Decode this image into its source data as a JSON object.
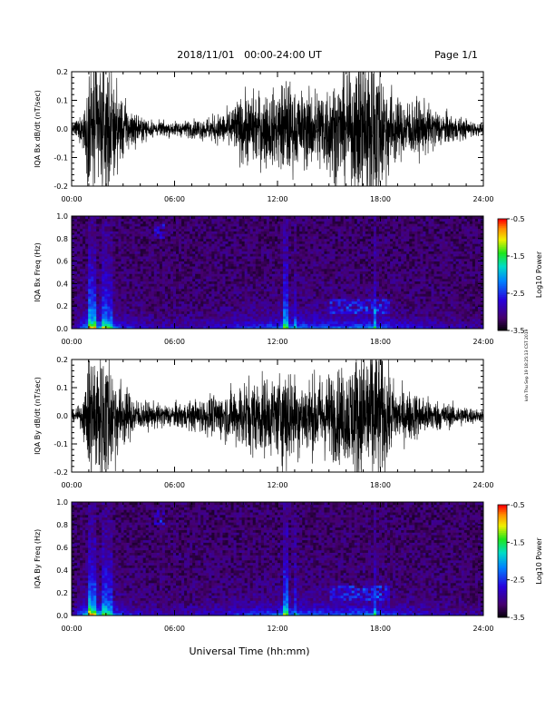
{
  "header": {
    "title": "2018/11/01   00:00-24:00 UT",
    "page": "Page 1/1"
  },
  "side_note": "ksh Thu Sep 19 18:25:13 CST 2019",
  "xlabel": "Universal Time (hh:mm)",
  "chart_data": [
    {
      "type": "line",
      "ylabel": "IQA Bx dB/dt (nT/sec)",
      "xlim": [
        0,
        24
      ],
      "ylim": [
        -0.2,
        0.2
      ],
      "x_ticks": [
        "00:00",
        "06:00",
        "12:00",
        "18:00",
        "24:00"
      ],
      "y_ticks": [
        "-0.2",
        "-0.1",
        "0.0",
        "0.1",
        "0.2"
      ],
      "envelope": {
        "hours": [
          0,
          0.5,
          0.9,
          1.0,
          1.5,
          2.0,
          2.5,
          3.0,
          3.5,
          4.0,
          5.0,
          6.0,
          7.0,
          8.0,
          9.0,
          9.5,
          10.0,
          11.0,
          12.0,
          12.5,
          13.0,
          14.0,
          15.0,
          16.0,
          16.5,
          17.0,
          17.5,
          18.0,
          19.0,
          20.0,
          21.0,
          22.0,
          23.0,
          24.0
        ],
        "amplitude": [
          0.02,
          0.05,
          0.15,
          0.3,
          0.28,
          0.3,
          0.18,
          0.12,
          0.08,
          0.05,
          0.03,
          0.03,
          0.035,
          0.05,
          0.07,
          0.1,
          0.14,
          0.15,
          0.15,
          0.22,
          0.15,
          0.16,
          0.2,
          0.22,
          0.25,
          0.35,
          0.35,
          0.28,
          0.12,
          0.12,
          0.09,
          0.06,
          0.04,
          0.02
        ]
      }
    },
    {
      "type": "heatmap",
      "ylabel": "IQA Bx Freq (Hz)",
      "xlim": [
        0,
        24
      ],
      "ylim": [
        0.0,
        1.0
      ],
      "x_ticks": [
        "00:00",
        "06:00",
        "12:00",
        "18:00",
        "24:00"
      ],
      "y_ticks": [
        "0.0",
        "0.2",
        "0.4",
        "0.6",
        "0.8",
        "1.0"
      ],
      "colorbar": {
        "label": "Log10 Power",
        "range": [
          -3.5,
          -0.5
        ],
        "ticks": [
          "-0.5",
          "-1.5",
          "-2.5",
          "-3.5"
        ]
      }
    },
    {
      "type": "line",
      "ylabel": "IQA By dB/dt (nT/sec)",
      "xlim": [
        0,
        24
      ],
      "ylim": [
        -0.2,
        0.2
      ],
      "x_ticks": [
        "00:00",
        "06:00",
        "12:00",
        "18:00",
        "24:00"
      ],
      "y_ticks": [
        "-0.2",
        "-0.1",
        "0.0",
        "0.1",
        "0.2"
      ],
      "envelope": {
        "hours": [
          0,
          0.5,
          0.9,
          1.0,
          1.5,
          2.0,
          2.5,
          3.0,
          3.5,
          4.0,
          5.0,
          6.0,
          7.0,
          8.0,
          9.0,
          9.5,
          10.0,
          11.0,
          12.0,
          12.5,
          13.0,
          14.0,
          15.0,
          16.0,
          16.5,
          17.0,
          17.5,
          18.0,
          19.0,
          20.0,
          21.0,
          22.0,
          23.0,
          24.0
        ],
        "amplitude": [
          0.02,
          0.04,
          0.15,
          0.3,
          0.28,
          0.3,
          0.2,
          0.13,
          0.09,
          0.06,
          0.05,
          0.05,
          0.06,
          0.08,
          0.1,
          0.12,
          0.15,
          0.16,
          0.16,
          0.24,
          0.17,
          0.16,
          0.18,
          0.2,
          0.26,
          0.3,
          0.33,
          0.26,
          0.11,
          0.1,
          0.07,
          0.05,
          0.04,
          0.02
        ]
      }
    },
    {
      "type": "heatmap",
      "ylabel": "IQA By Freq (Hz)",
      "xlim": [
        0,
        24
      ],
      "ylim": [
        0.0,
        1.0
      ],
      "x_ticks": [
        "00:00",
        "06:00",
        "12:00",
        "18:00",
        "24:00"
      ],
      "y_ticks": [
        "0.0",
        "0.2",
        "0.4",
        "0.6",
        "0.8",
        "1.0"
      ],
      "colorbar": {
        "label": "Log10 Power",
        "range": [
          -3.5,
          -0.5
        ],
        "ticks": [
          "-0.5",
          "-1.5",
          "-2.5",
          "-3.5"
        ]
      }
    }
  ]
}
